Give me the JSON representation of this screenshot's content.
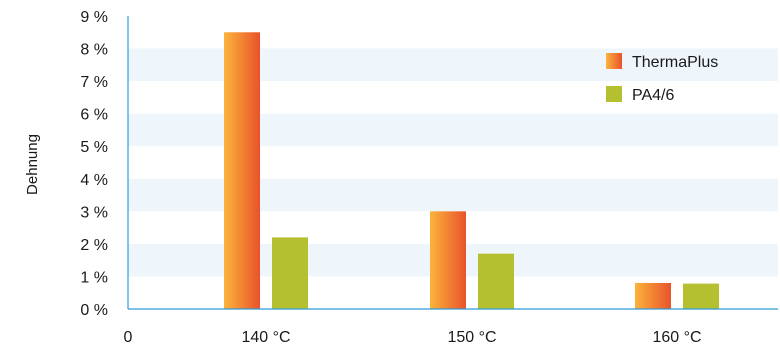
{
  "chart_data": {
    "type": "bar",
    "title": "",
    "xlabel": "",
    "ylabel": "Dehnung",
    "x_origin_label": "0",
    "categories": [
      "140 °C",
      "150 °C",
      "160 °C"
    ],
    "series": [
      {
        "name": "ThermaPlus",
        "values": [
          8.5,
          3.0,
          0.8
        ],
        "color": "#e8532a",
        "color_light": "#fbb33c"
      },
      {
        "name": "PA4/6",
        "values": [
          2.2,
          1.7,
          0.78
        ],
        "color": "#b5c030"
      }
    ],
    "ylim": [
      0,
      9
    ],
    "yticks": [
      {
        "value": 0,
        "label": "0 %"
      },
      {
        "value": 1,
        "label": "1 %"
      },
      {
        "value": 2,
        "label": "2 %"
      },
      {
        "value": 3,
        "label": "3 %"
      },
      {
        "value": 4,
        "label": "4 %"
      },
      {
        "value": 5,
        "label": "5 %"
      },
      {
        "value": 6,
        "label": "6 %"
      },
      {
        "value": 7,
        "label": "7 %"
      },
      {
        "value": 8,
        "label": "8 %"
      },
      {
        "value": 9,
        "label": "9 %"
      }
    ],
    "grid": "alternating horizontal bands",
    "band_color": "#eef5fb",
    "axis_color": "#2f9bd8",
    "legend_position": "top-right"
  }
}
